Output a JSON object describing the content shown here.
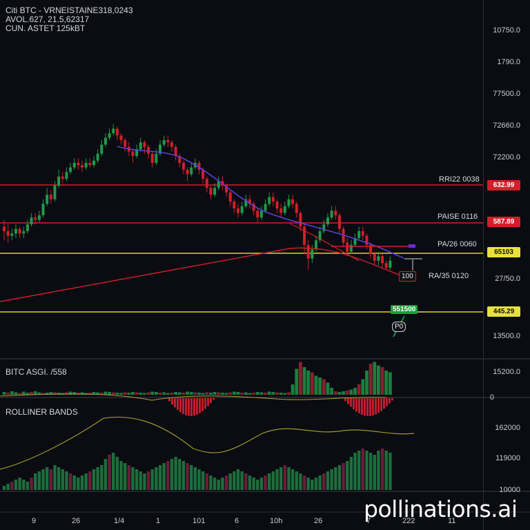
{
  "header": {
    "line1": "Citi BTC  - VRNEISTAINE318,0243",
    "line2": "AVOL.627, 21.5,62317",
    "line3": "CUN. ASTET 125kBT"
  },
  "price_axis": {
    "ticks": [
      "10750.0",
      "1790.0",
      "77500.0",
      "72660.0",
      "72200.0",
      "27/50.0",
      "13500.0"
    ]
  },
  "levels": [
    {
      "label": "RRI22 0038",
      "badge": "632.99",
      "color": "#d21f2b",
      "badge_bg": "#d21f2b"
    },
    {
      "label": "PAISE 0116",
      "badge": "587.89",
      "color": "#d21f2b",
      "badge_bg": "#d21f2b"
    },
    {
      "label": "PA/26 0060",
      "badge": "65103",
      "color": "#e3d800",
      "badge_bg": "#e8e13a"
    },
    {
      "label": "RA/35 0120",
      "badge": "445.29",
      "color": "#e3d800",
      "badge_bg": "#e8e13a"
    }
  ],
  "annotations": {
    "red_box": "100",
    "green_box": "551500",
    "small_box": "P0"
  },
  "volume_panel": {
    "label": "BITC ASGI. /558",
    "ticks": [
      "15200.0",
      "0"
    ]
  },
  "bands_panel": {
    "label": "ROLLINER BANDS",
    "ticks": [
      "162000",
      "119000",
      "10000"
    ]
  },
  "time_axis": {
    "ticks": [
      "9",
      "26",
      "1/4",
      "1",
      "101",
      "6",
      "10h",
      "26",
      "7",
      "222",
      "11"
    ]
  },
  "watermark": "pollinations.ai",
  "colors": {
    "up": "#1f9a4a",
    "down": "#d0202b",
    "ma": "#5b3fd6",
    "trend": "#d21f2b",
    "band": "#9c9a2a"
  },
  "chart_data": {
    "type": "candlestick",
    "series": [
      {
        "values": [
          [
            0.52,
            0.5,
            0.55,
            0.46
          ],
          [
            0.5,
            0.48,
            0.53,
            0.45
          ],
          [
            0.48,
            0.49,
            0.51,
            0.46
          ],
          [
            0.49,
            0.51,
            0.53,
            0.47
          ],
          [
            0.51,
            0.49,
            0.52,
            0.47
          ],
          [
            0.49,
            0.5,
            0.52,
            0.47
          ],
          [
            0.5,
            0.53,
            0.55,
            0.49
          ],
          [
            0.53,
            0.56,
            0.58,
            0.52
          ],
          [
            0.56,
            0.55,
            0.58,
            0.53
          ],
          [
            0.55,
            0.57,
            0.59,
            0.54
          ],
          [
            0.57,
            0.62,
            0.64,
            0.56
          ],
          [
            0.62,
            0.66,
            0.69,
            0.61
          ],
          [
            0.66,
            0.64,
            0.68,
            0.62
          ],
          [
            0.64,
            0.7,
            0.72,
            0.63
          ],
          [
            0.7,
            0.74,
            0.77,
            0.69
          ],
          [
            0.74,
            0.73,
            0.76,
            0.71
          ],
          [
            0.73,
            0.76,
            0.78,
            0.72
          ],
          [
            0.76,
            0.78,
            0.8,
            0.75
          ],
          [
            0.78,
            0.8,
            0.82,
            0.77
          ],
          [
            0.8,
            0.79,
            0.82,
            0.77
          ],
          [
            0.79,
            0.78,
            0.81,
            0.76
          ],
          [
            0.78,
            0.8,
            0.82,
            0.77
          ],
          [
            0.8,
            0.79,
            0.82,
            0.78
          ],
          [
            0.79,
            0.81,
            0.83,
            0.78
          ],
          [
            0.81,
            0.84,
            0.86,
            0.8
          ],
          [
            0.84,
            0.88,
            0.9,
            0.83
          ],
          [
            0.88,
            0.91,
            0.93,
            0.87
          ],
          [
            0.91,
            0.93,
            0.95,
            0.9
          ],
          [
            0.93,
            0.95,
            0.97,
            0.92
          ],
          [
            0.95,
            0.92,
            0.96,
            0.9
          ],
          [
            0.92,
            0.9,
            0.93,
            0.88
          ],
          [
            0.9,
            0.87,
            0.91,
            0.85
          ],
          [
            0.87,
            0.85,
            0.89,
            0.83
          ],
          [
            0.85,
            0.83,
            0.86,
            0.8
          ],
          [
            0.83,
            0.86,
            0.88,
            0.82
          ],
          [
            0.86,
            0.89,
            0.91,
            0.85
          ],
          [
            0.89,
            0.87,
            0.9,
            0.84
          ],
          [
            0.87,
            0.84,
            0.88,
            0.82
          ],
          [
            0.84,
            0.8,
            0.85,
            0.78
          ],
          [
            0.8,
            0.84,
            0.86,
            0.79
          ],
          [
            0.84,
            0.88,
            0.9,
            0.83
          ],
          [
            0.88,
            0.9,
            0.92,
            0.87
          ],
          [
            0.9,
            0.89,
            0.92,
            0.87
          ],
          [
            0.89,
            0.87,
            0.9,
            0.85
          ],
          [
            0.87,
            0.83,
            0.88,
            0.81
          ],
          [
            0.83,
            0.8,
            0.84,
            0.78
          ],
          [
            0.8,
            0.77,
            0.81,
            0.75
          ],
          [
            0.77,
            0.75,
            0.78,
            0.72
          ],
          [
            0.75,
            0.78,
            0.8,
            0.74
          ],
          [
            0.78,
            0.8,
            0.82,
            0.77
          ],
          [
            0.8,
            0.77,
            0.81,
            0.75
          ],
          [
            0.77,
            0.73,
            0.78,
            0.71
          ],
          [
            0.73,
            0.69,
            0.74,
            0.67
          ],
          [
            0.69,
            0.66,
            0.7,
            0.64
          ],
          [
            0.66,
            0.69,
            0.71,
            0.65
          ],
          [
            0.69,
            0.72,
            0.74,
            0.68
          ],
          [
            0.72,
            0.7,
            0.74,
            0.68
          ],
          [
            0.7,
            0.67,
            0.71,
            0.65
          ],
          [
            0.67,
            0.63,
            0.68,
            0.61
          ],
          [
            0.63,
            0.6,
            0.64,
            0.58
          ],
          [
            0.6,
            0.58,
            0.62,
            0.56
          ],
          [
            0.58,
            0.61,
            0.63,
            0.57
          ],
          [
            0.61,
            0.64,
            0.66,
            0.6
          ],
          [
            0.64,
            0.62,
            0.66,
            0.6
          ],
          [
            0.62,
            0.59,
            0.63,
            0.57
          ],
          [
            0.59,
            0.56,
            0.6,
            0.54
          ],
          [
            0.56,
            0.59,
            0.61,
            0.55
          ],
          [
            0.59,
            0.62,
            0.64,
            0.58
          ],
          [
            0.62,
            0.65,
            0.67,
            0.61
          ],
          [
            0.65,
            0.63,
            0.67,
            0.61
          ],
          [
            0.63,
            0.6,
            0.64,
            0.58
          ],
          [
            0.6,
            0.58,
            0.62,
            0.56
          ],
          [
            0.58,
            0.61,
            0.63,
            0.57
          ],
          [
            0.61,
            0.64,
            0.66,
            0.6
          ],
          [
            0.64,
            0.62,
            0.66,
            0.6
          ],
          [
            0.62,
            0.58,
            0.63,
            0.56
          ],
          [
            0.58,
            0.52,
            0.59,
            0.5
          ],
          [
            0.52,
            0.44,
            0.53,
            0.4
          ],
          [
            0.44,
            0.38,
            0.46,
            0.33
          ],
          [
            0.38,
            0.42,
            0.44,
            0.36
          ],
          [
            0.42,
            0.46,
            0.48,
            0.41
          ],
          [
            0.46,
            0.5,
            0.52,
            0.45
          ],
          [
            0.5,
            0.53,
            0.55,
            0.49
          ],
          [
            0.53,
            0.56,
            0.58,
            0.52
          ],
          [
            0.56,
            0.59,
            0.61,
            0.55
          ],
          [
            0.59,
            0.57,
            0.61,
            0.55
          ],
          [
            0.57,
            0.51,
            0.58,
            0.49
          ],
          [
            0.51,
            0.45,
            0.52,
            0.43
          ],
          [
            0.45,
            0.41,
            0.47,
            0.39
          ],
          [
            0.41,
            0.44,
            0.46,
            0.4
          ],
          [
            0.44,
            0.47,
            0.49,
            0.43
          ],
          [
            0.47,
            0.5,
            0.52,
            0.46
          ],
          [
            0.5,
            0.48,
            0.52,
            0.46
          ],
          [
            0.48,
            0.44,
            0.49,
            0.42
          ],
          [
            0.44,
            0.4,
            0.45,
            0.38
          ],
          [
            0.4,
            0.37,
            0.41,
            0.35
          ],
          [
            0.37,
            0.39,
            0.41,
            0.35
          ],
          [
            0.39,
            0.36,
            0.4,
            0.34
          ],
          [
            0.36,
            0.34,
            0.37,
            0.33
          ],
          [
            0.34,
            0.37,
            0.39,
            0.33
          ]
        ]
      }
    ],
    "volume": [
      0.08,
      0.06,
      0.1,
      0.07,
      0.05,
      0.09,
      0.06,
      0.08,
      0.1,
      0.07,
      0.05,
      0.06,
      0.08,
      0.07,
      0.06,
      0.05,
      0.07,
      0.09,
      0.08,
      0.06,
      0.07,
      0.05,
      0.06,
      0.08,
      0.07,
      0.06,
      0.09,
      0.08,
      0.07,
      0.06,
      0.05,
      0.07,
      0.06,
      0.08,
      0.07,
      0.06,
      0.05,
      0.07,
      0.09,
      0.08,
      0.06,
      0.07,
      0.05,
      0.06,
      0.08,
      0.07,
      0.06,
      0.09,
      0.08,
      0.07,
      0.06,
      0.05,
      0.07,
      0.06,
      0.08,
      0.07,
      0.06,
      0.05,
      0.07,
      0.09,
      0.08,
      0.06,
      0.07,
      0.05,
      0.06,
      0.08,
      0.07,
      0.06,
      0.09,
      0.08,
      0.07,
      0.06,
      0.05,
      0.07,
      0.3,
      0.75,
      0.95,
      0.8,
      0.7,
      0.65,
      0.55,
      0.5,
      0.45,
      0.35,
      0.2,
      0.1,
      0.08,
      0.1,
      0.12,
      0.15,
      0.2,
      0.3,
      0.45,
      0.7,
      0.9,
      0.95,
      0.85,
      0.8,
      0.7,
      0.65
    ],
    "histogram": [
      0.1,
      0.15,
      0.2,
      0.25,
      0.3,
      0.25,
      0.2,
      0.3,
      0.4,
      0.45,
      0.5,
      0.55,
      0.5,
      0.6,
      0.55,
      0.5,
      0.45,
      0.4,
      0.35,
      0.3,
      0.35,
      0.4,
      0.45,
      0.5,
      0.55,
      0.6,
      0.75,
      0.85,
      0.9,
      0.8,
      0.7,
      0.65,
      0.6,
      0.55,
      0.5,
      0.45,
      0.4,
      0.45,
      0.5,
      0.55,
      0.6,
      0.65,
      0.7,
      0.75,
      0.8,
      0.75,
      0.7,
      0.65,
      0.6,
      0.55,
      0.5,
      0.45,
      0.4,
      0.35,
      0.3,
      0.25,
      0.3,
      0.35,
      0.4,
      0.45,
      0.5,
      0.45,
      0.4,
      0.35,
      0.3,
      0.25,
      0.3,
      0.35,
      0.4,
      0.45,
      0.5,
      0.55,
      0.6,
      0.55,
      0.5,
      0.45,
      0.4,
      0.35,
      0.3,
      0.25,
      0.3,
      0.35,
      0.4,
      0.45,
      0.5,
      0.55,
      0.6,
      0.65,
      0.7,
      0.8,
      0.9,
      0.95,
      1.0,
      0.95,
      0.9,
      0.85,
      0.95,
      1.0,
      0.95,
      0.9
    ]
  }
}
